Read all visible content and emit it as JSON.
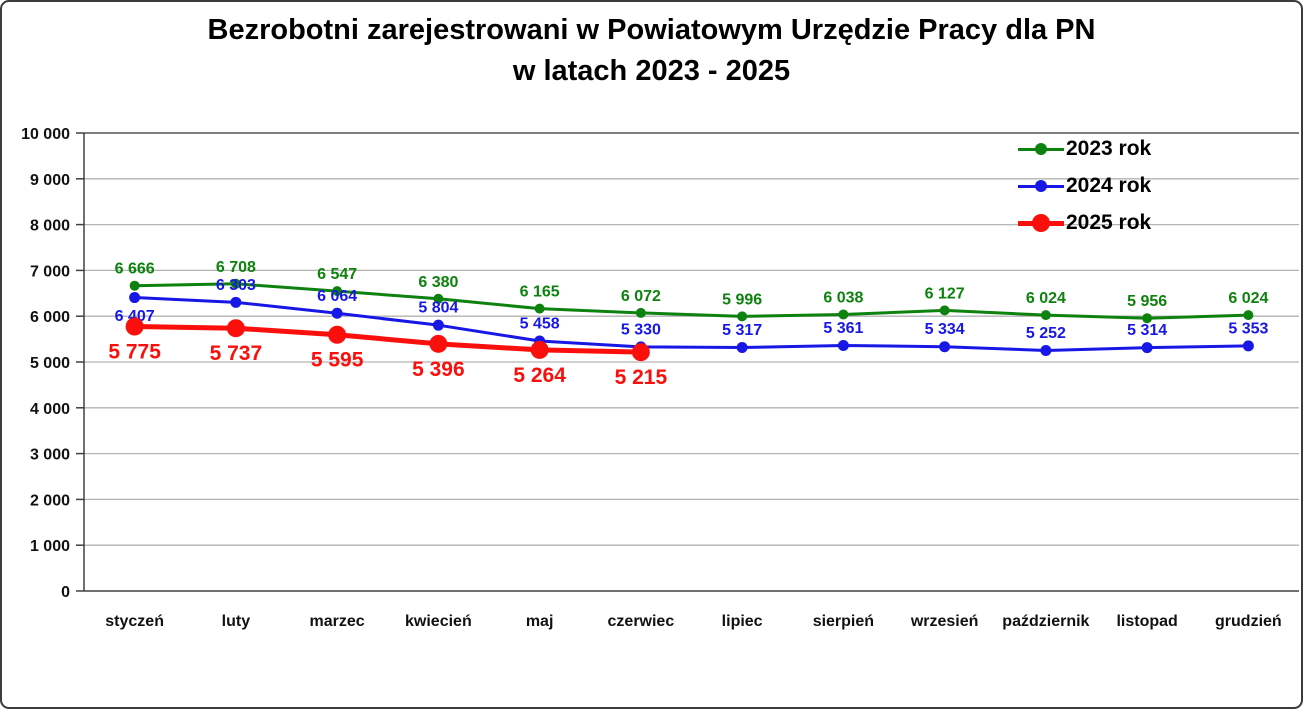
{
  "title": {
    "line1": "Bezrobotni zarejestrowani w Powiatowym Urzędzie Pracy dla PN",
    "line2": "w latach 2023 - 2025"
  },
  "legend": {
    "items": [
      {
        "label": "2023 rok",
        "color": "#0e820e",
        "size": "small"
      },
      {
        "label": "2024 rok",
        "color": "#1717e6",
        "size": "small"
      },
      {
        "label": "2025 rok",
        "color": "#fa0f0c",
        "size": "large"
      }
    ]
  },
  "chart_data": {
    "type": "line",
    "title": "Bezrobotni zarejestrowani w Powiatowym Urzędzie Pracy dla PN w latach 2023 - 2025",
    "categories": [
      "styczeń",
      "luty",
      "marzec",
      "kwiecień",
      "maj",
      "czerwiec",
      "lipiec",
      "sierpień",
      "wrzesień",
      "październik",
      "listopad",
      "grudzień"
    ],
    "series": [
      {
        "name": "2023 rok",
        "color": "#0e820e",
        "line_width": 3,
        "marker_radius": 5,
        "label_size": 16,
        "label_position": "above",
        "values": [
          6666,
          6708,
          6547,
          6380,
          6165,
          6072,
          5996,
          6038,
          6127,
          6024,
          5956,
          6024
        ]
      },
      {
        "name": "2024 rok",
        "color": "#1717e6",
        "line_width": 3,
        "marker_radius": 5.5,
        "label_size": 16,
        "label_position": "above",
        "label_position_overrides": {
          "0": "below"
        },
        "values": [
          6407,
          6303,
          6064,
          5804,
          5458,
          5330,
          5317,
          5361,
          5334,
          5252,
          5314,
          5353
        ]
      },
      {
        "name": "2025 rok",
        "color": "#fa0f0c",
        "line_width": 5,
        "marker_radius": 9,
        "label_size": 21,
        "label_position": "below",
        "values": [
          5775,
          5737,
          5595,
          5396,
          5264,
          5215
        ]
      }
    ],
    "xlabel": "",
    "ylabel": "",
    "y_axis": {
      "min": 0,
      "max": 10000,
      "step": 1000
    },
    "ylim": [
      0,
      10000
    ],
    "number_format": "space-thousands",
    "grid": true,
    "legend_position": "top-right",
    "colors": {
      "gridline": "#b3b3b3",
      "plot_top_border": "#7f7f7f",
      "axis": "#404040",
      "text": "#111111"
    }
  }
}
